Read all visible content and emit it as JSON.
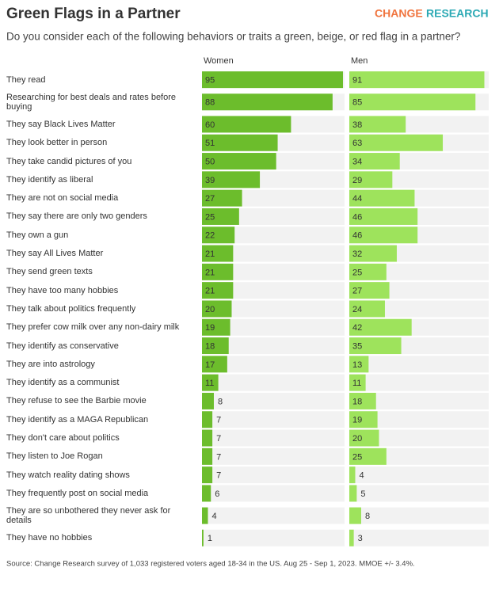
{
  "chart_data": {
    "type": "bar",
    "title": "Green Flags in a Partner",
    "brand": [
      "CHANGE",
      "RESEARCH"
    ],
    "subtitle": "Do you consider each of the following behaviors or traits a green, beige, or red flag in a partner?",
    "source": "Source: Change Research survey of 1,033 registered voters aged 18-34 in the US. Aug 25 - Sep 1, 2023. MMOE +/- 3.4%.",
    "categories": [
      "They read",
      "Researching for best deals and rates before buying",
      "They say Black Lives Matter",
      "They look better in person",
      "They take candid pictures of you",
      "They identify as liberal",
      "They are not on social media",
      "They say there are only two genders",
      "They own a gun",
      "They say All Lives Matter",
      "They send green texts",
      "They have too many hobbies",
      "They talk about politics frequently",
      "They prefer cow milk over any non-dairy milk",
      "They identify as conservative",
      "They are into astrology",
      "They identify as a communist",
      "They refuse to see the Barbie movie",
      "They identify as a MAGA Republican",
      "They don't care about politics",
      "They listen to Joe Rogan",
      "They watch reality dating shows",
      "They frequently post on social media",
      "They are so unbothered they never ask for details",
      "They have no hobbies"
    ],
    "series": [
      {
        "name": "Women",
        "color": "#6cbd2c",
        "values": [
          95,
          88,
          60,
          51,
          50,
          39,
          27,
          25,
          22,
          21,
          21,
          21,
          20,
          19,
          18,
          17,
          11,
          8,
          7,
          7,
          7,
          7,
          6,
          4,
          1
        ]
      },
      {
        "name": "Men",
        "color": "#9ee35c",
        "values": [
          91,
          85,
          38,
          63,
          34,
          29,
          44,
          46,
          46,
          32,
          25,
          27,
          24,
          42,
          35,
          13,
          11,
          18,
          19,
          20,
          25,
          4,
          5,
          8,
          3
        ]
      }
    ]
  }
}
